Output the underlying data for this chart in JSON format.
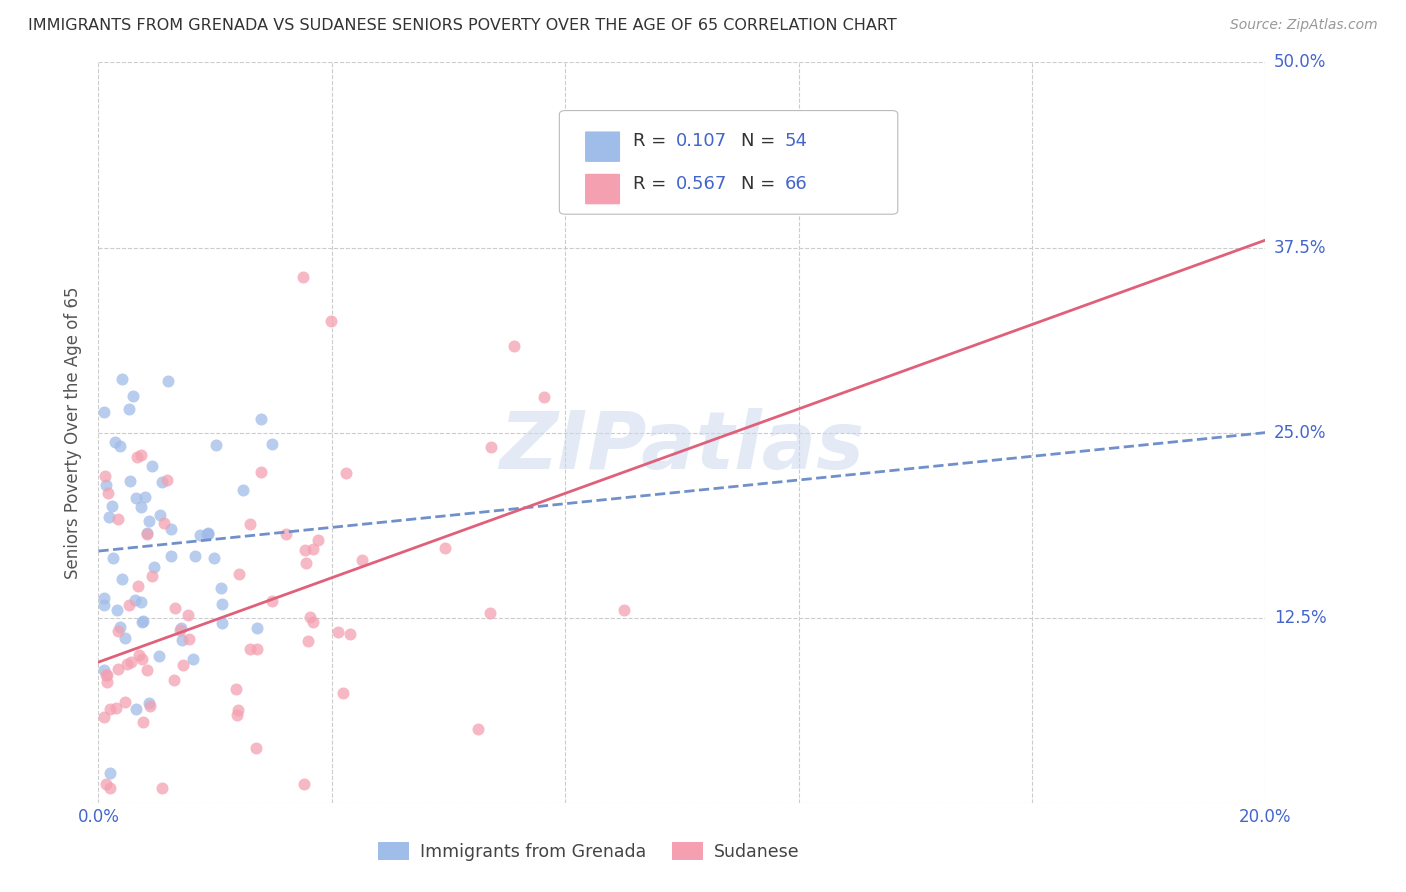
{
  "title": "IMMIGRANTS FROM GRENADA VS SUDANESE SENIORS POVERTY OVER THE AGE OF 65 CORRELATION CHART",
  "source": "Source: ZipAtlas.com",
  "ylabel": "Seniors Poverty Over the Age of 65",
  "xlim": [
    0.0,
    0.2
  ],
  "ylim": [
    0.0,
    0.5
  ],
  "xticks": [
    0.0,
    0.04,
    0.08,
    0.12,
    0.16,
    0.2
  ],
  "yticks": [
    0.0,
    0.125,
    0.25,
    0.375,
    0.5
  ],
  "watermark_text": "ZIPatlas",
  "legend1_label": "Immigrants from Grenada",
  "legend2_label": "Sudanese",
  "R1": 0.107,
  "N1": 54,
  "R2": 0.567,
  "N2": 66,
  "color1": "#a0bce8",
  "color2": "#f4a0b0",
  "trendline1_color": "#7090cc",
  "trendline2_color": "#e0607a",
  "background_color": "#ffffff",
  "grid_color": "#cccccc",
  "axis_label_color": "#4466cc",
  "title_color": "#333333",
  "trendline1_x": [
    0.0,
    0.2
  ],
  "trendline1_y": [
    0.17,
    0.25
  ],
  "trendline2_x": [
    0.0,
    0.2
  ],
  "trendline2_y": [
    0.095,
    0.38
  ],
  "legend_text_color": "#333333",
  "legend_value_color": "#4466cc"
}
